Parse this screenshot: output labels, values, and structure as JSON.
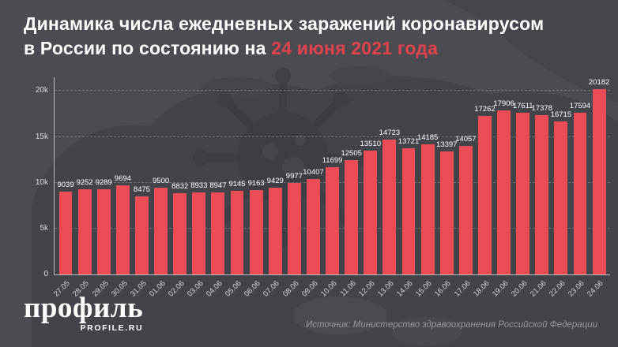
{
  "header": {
    "title_line1": "Динамика числа ежедневных заражений коронавирусом",
    "title_line2_prefix": "в России по состоянию на ",
    "title_date": "24 июня 2021 года"
  },
  "chart_data": {
    "type": "bar",
    "title": "Динамика числа ежедневных заражений коронавирусом в России по состоянию на 24 июня 2021 года",
    "categories": [
      "27.05",
      "28.05",
      "29.05",
      "30.05",
      "31.05",
      "01.06",
      "02.06",
      "03.06",
      "04.06",
      "05.06",
      "06.06",
      "07.06",
      "08.06",
      "09.06",
      "10.06",
      "11.06",
      "12.06",
      "13.06",
      "14.06",
      "15.06",
      "16.06",
      "17.06",
      "18.06",
      "19.06",
      "20.06",
      "21.06",
      "22.06",
      "23.06",
      "24.06"
    ],
    "values": [
      9039,
      9252,
      9289,
      9694,
      8475,
      9500,
      8832,
      8933,
      8947,
      9145,
      9163,
      9429,
      9977,
      10407,
      11699,
      12505,
      13510,
      14723,
      13721,
      14185,
      13397,
      14057,
      17262,
      17906,
      17611,
      17378,
      16715,
      17594,
      20182
    ],
    "xlabel": "",
    "ylabel": "",
    "ylim": [
      0,
      21500
    ],
    "yticks": [
      {
        "value": 0,
        "label": "0"
      },
      {
        "value": 5000,
        "label": "5k"
      },
      {
        "value": 10000,
        "label": "10k"
      },
      {
        "value": 15000,
        "label": "15k"
      },
      {
        "value": 20000,
        "label": "20k"
      }
    ],
    "grid": "horizontal-dashed",
    "legend": "none",
    "value_labels": true,
    "bar_color": "#eb4c55"
  },
  "footer": {
    "logo_text": "профиль",
    "logo_subtext": "PROFILE.RU",
    "source": "Источник: Министерство здравоохранения Российской Федерации"
  },
  "colors": {
    "background": "#4b4c52",
    "map_silhouette": "#434449",
    "bar": "#eb4c55",
    "accent_red": "#e2414e",
    "text_white": "#ffffff",
    "text_muted": "#97989e"
  }
}
